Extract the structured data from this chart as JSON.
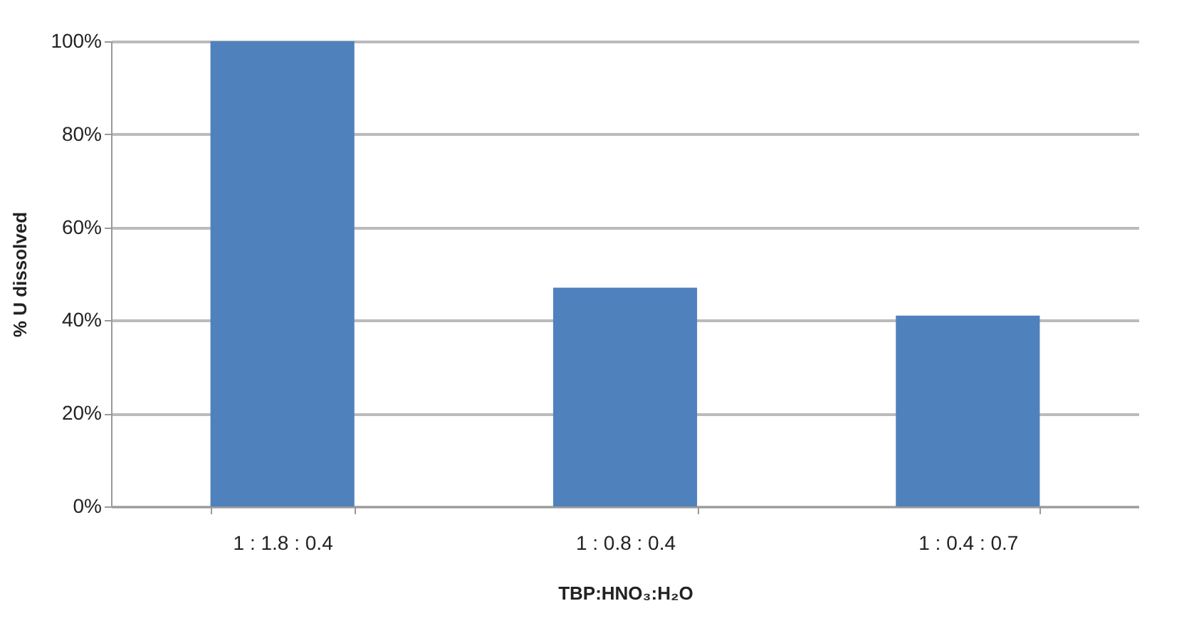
{
  "chart_data": {
    "type": "bar",
    "xlabel": "TBP:HNO₃:H₂O",
    "ylabel": "% U dissolved",
    "categories": [
      "1 : 1.8 : 0.4",
      "1 : 0.8 : 0.4",
      "1 : 0.4 : 0.7"
    ],
    "values": [
      100,
      47,
      41
    ],
    "color": "#4f81bd",
    "ylim": [
      0,
      100
    ],
    "yticks": [
      {
        "value": 0,
        "label": "0%"
      },
      {
        "value": 20,
        "label": "20%"
      },
      {
        "value": 40,
        "label": "40%"
      },
      {
        "value": 60,
        "label": "60%"
      },
      {
        "value": 80,
        "label": "80%"
      },
      {
        "value": 100,
        "label": "100%"
      }
    ],
    "grid": "y"
  }
}
